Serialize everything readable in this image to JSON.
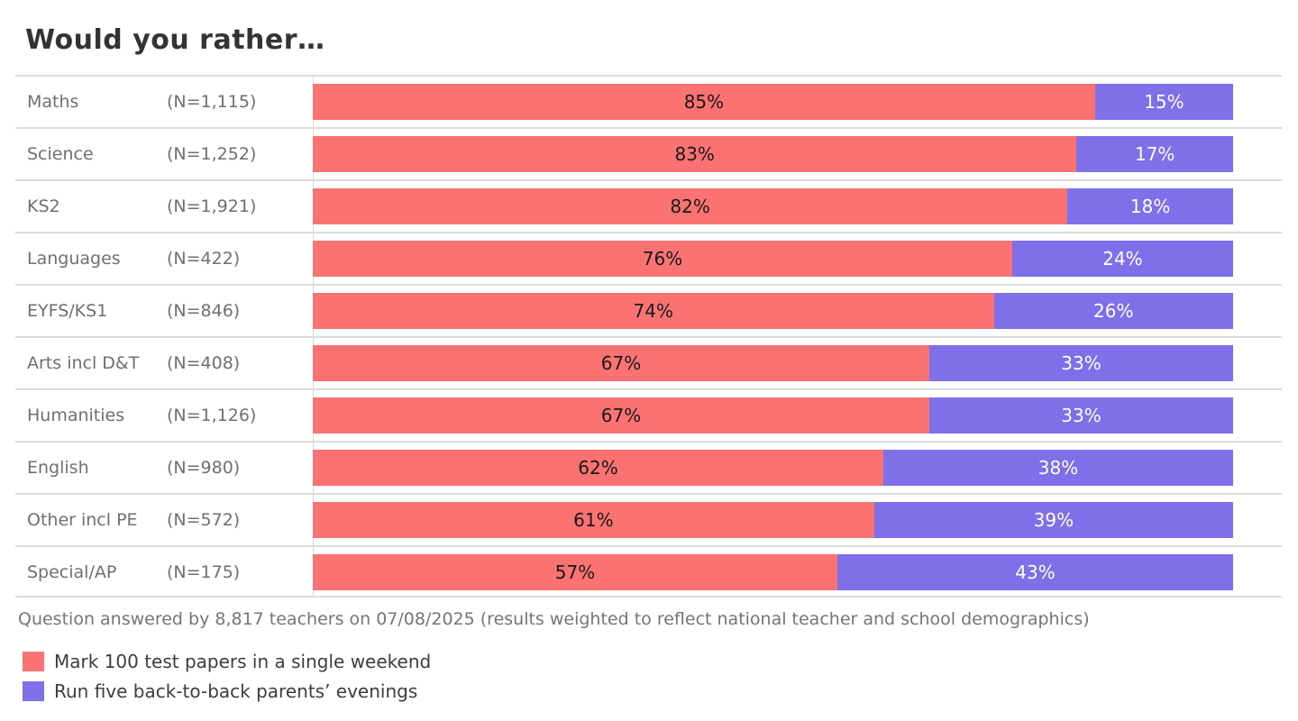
{
  "title": "Would you rather…",
  "footer_note": "Question answered by 8,817 teachers on 07/08/2025 (results weighted to reflect national teacher and school demographics)",
  "colors": {
    "option_a": "#fa7272",
    "option_b": "#7d70e8",
    "divider": "#dbdbdb",
    "label_gray": "#6f6f6f"
  },
  "legend": [
    {
      "label": "Mark 100 test papers in a single weekend",
      "color": "#fa7272"
    },
    {
      "label": "Run five back-to-back parents’ evenings",
      "color": "#7d70e8"
    }
  ],
  "chart_data": {
    "type": "bar",
    "orientation": "horizontal",
    "stacked": true,
    "title": "Would you rather…",
    "value_suffix": "%",
    "xlim": [
      0,
      100
    ],
    "grid": false,
    "legend_position": "bottom-left",
    "categories": [
      "Maths",
      "Science",
      "KS2",
      "Languages",
      "EYFS/KS1",
      "Arts incl D&T",
      "Humanities",
      "English",
      "Other incl PE",
      "Special/AP"
    ],
    "sample_sizes": [
      "(N=1,115)",
      "(N=1,252)",
      "(N=1,921)",
      "(N=422)",
      "(N=846)",
      "(N=408)",
      "(N=1,126)",
      "(N=980)",
      "(N=572)",
      "(N=175)"
    ],
    "series": [
      {
        "name": "Mark 100 test papers in a single weekend",
        "color": "#fa7272",
        "values": [
          85,
          83,
          82,
          76,
          74,
          67,
          67,
          62,
          61,
          57
        ]
      },
      {
        "name": "Run five back-to-back parents’ evenings",
        "color": "#7d70e8",
        "values": [
          15,
          17,
          18,
          24,
          26,
          33,
          33,
          38,
          39,
          43
        ]
      }
    ]
  }
}
